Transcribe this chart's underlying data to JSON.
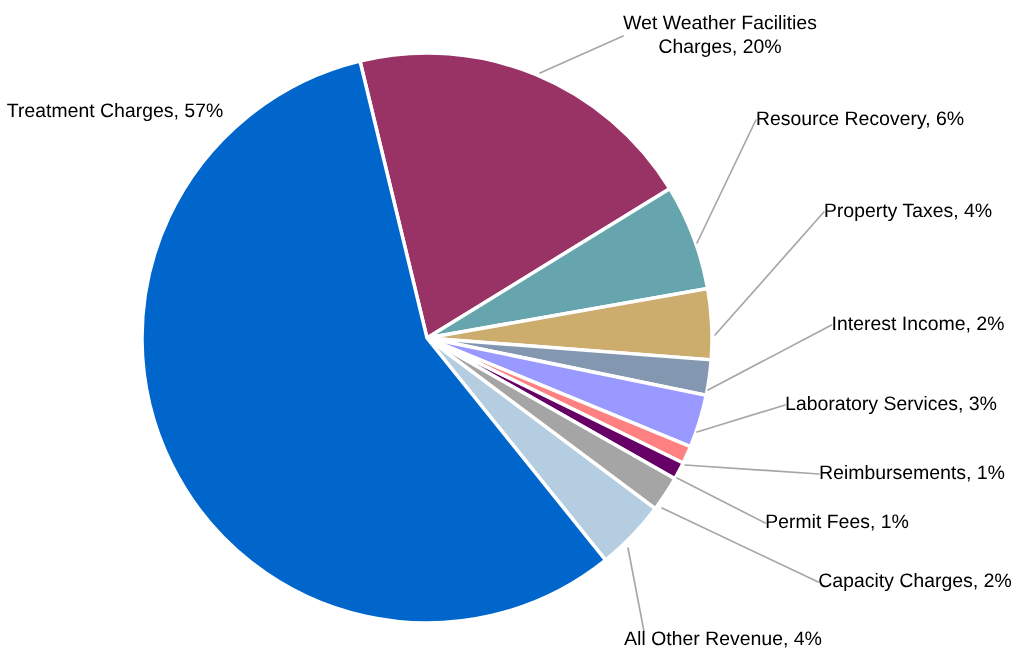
{
  "chart_data": {
    "type": "pie",
    "categories": [
      "Wet Weather Facilities Charges",
      "Resource Recovery",
      "Property Taxes",
      "Interest Income",
      "Laboratory Services",
      "Reimbursements",
      "Permit Fees",
      "Capacity Charges",
      "All Other Revenue",
      "Treatment Charges"
    ],
    "values": [
      20,
      6,
      4,
      2,
      3,
      1,
      1,
      2,
      4,
      57
    ],
    "value_labels": [
      "20%",
      "6%",
      "4%",
      "2%",
      "3%",
      "1%",
      "1%",
      "2%",
      "4%",
      "57%"
    ],
    "colors": [
      "#993366",
      "#66a5ad",
      "#ccad6e",
      "#8497b0",
      "#9999ff",
      "#ff8080",
      "#660066",
      "#a5a5a5",
      "#b4cde0",
      "#0066cc"
    ],
    "legend": false
  }
}
